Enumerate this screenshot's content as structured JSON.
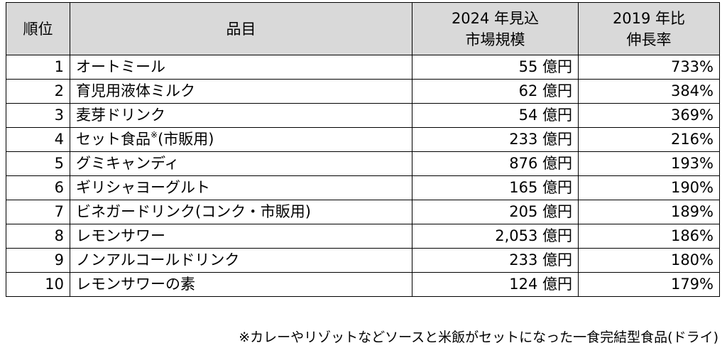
{
  "table": {
    "headers": {
      "rank": "順位",
      "item": "品目",
      "size_line1": "2024 年見込",
      "size_line2": "市場規模",
      "growth_line1": "2019 年比",
      "growth_line2": "伸長率"
    },
    "rows": [
      {
        "rank": "1",
        "item": "オートミール",
        "size": "55 億円",
        "growth": "733%"
      },
      {
        "rank": "2",
        "item": "育児用液体ミルク",
        "size": "62 億円",
        "growth": "384%"
      },
      {
        "rank": "3",
        "item": "麦芽ドリンク",
        "size": "54 億円",
        "growth": "369%"
      },
      {
        "rank": "4",
        "item": "セット食品",
        "item_mark": "※",
        "item_suffix": "(市販用)",
        "size": "233 億円",
        "growth": "216%"
      },
      {
        "rank": "5",
        "item": "グミキャンディ",
        "size": "876 億円",
        "growth": "193%"
      },
      {
        "rank": "6",
        "item": "ギリシャヨーグルト",
        "size": "165 億円",
        "growth": "190%"
      },
      {
        "rank": "7",
        "item": "ビネガードリンク(コンク・市販用)",
        "size": "205 億円",
        "growth": "189%"
      },
      {
        "rank": "8",
        "item": "レモンサワー",
        "size": "2,053 億円",
        "growth": "186%"
      },
      {
        "rank": "9",
        "item": "ノンアルコールドリンク",
        "size": "233 億円",
        "growth": "180%"
      },
      {
        "rank": "10",
        "item": "レモンサワーの素",
        "size": "124 億円",
        "growth": "179%"
      }
    ]
  },
  "footnote": "※カレーやリゾットなどソースと米飯がセットになった一食完結型食品(ドライ)"
}
